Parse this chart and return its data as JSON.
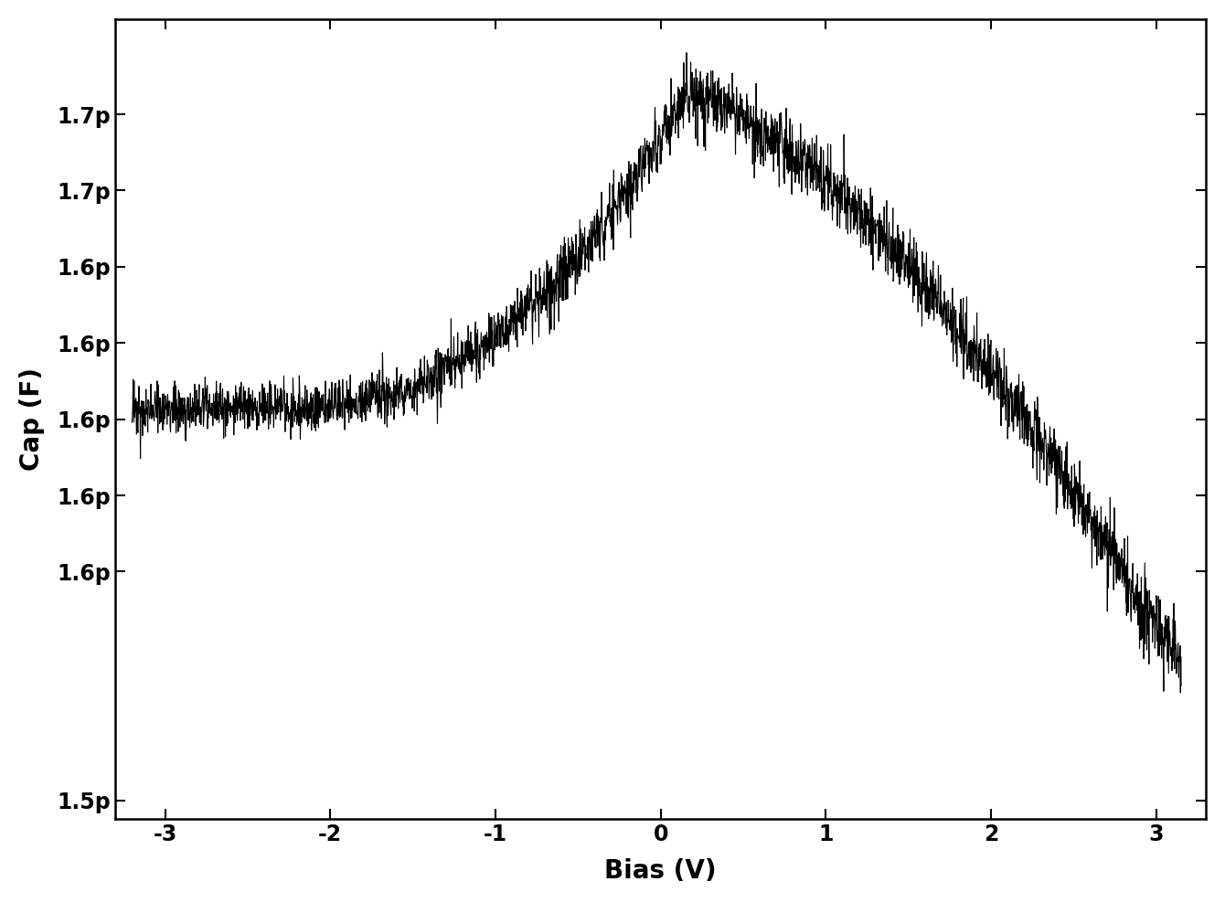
{
  "title": "",
  "xlabel": "Bias (V)",
  "ylabel": "Cap (F)",
  "xlim": [
    -3.3,
    3.3
  ],
  "ylim": [
    1.495e-12,
    1.705e-12
  ],
  "xticks": [
    -3,
    -2,
    -1,
    0,
    1,
    2,
    3
  ],
  "ytick_values": [
    1.5e-12,
    1.56e-12,
    1.58e-12,
    1.6e-12,
    1.62e-12,
    1.64e-12,
    1.66e-12,
    1.68e-12
  ],
  "line_color": "#000000",
  "background_color": "#ffffff",
  "noise_seed": 42,
  "xlabel_fontsize": 20,
  "ylabel_fontsize": 20,
  "tick_fontsize": 17,
  "line_width": 0.8
}
